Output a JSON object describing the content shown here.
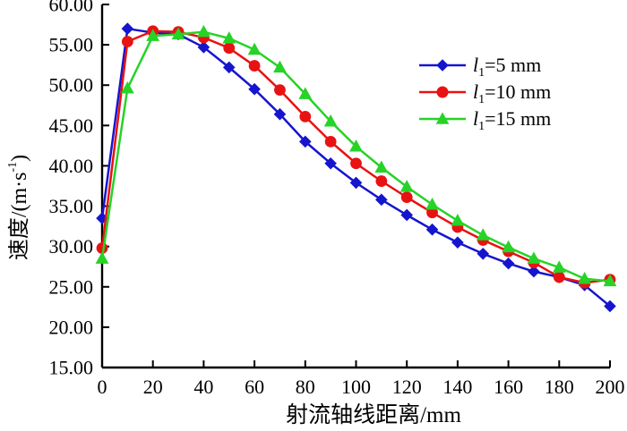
{
  "chart_data": {
    "type": "line",
    "xlabel": "射流轴线距离/mm",
    "ylabel_main": "速度/(m·s",
    "ylabel_sup": "-1",
    "ylabel_end": ")",
    "xlim": [
      0,
      200
    ],
    "ylim": [
      15,
      60
    ],
    "xticks": [
      "0",
      "20",
      "40",
      "60",
      "80",
      "100",
      "120",
      "140",
      "160",
      "180",
      "200"
    ],
    "yticks": [
      "60.00",
      "55.00",
      "50.00",
      "45.00",
      "40.00",
      "35.00",
      "30.00",
      "25.00",
      "20.00",
      "15.00"
    ],
    "grid": false,
    "legend_position": "inside-upper-right",
    "x": [
      0,
      10,
      20,
      30,
      40,
      50,
      60,
      70,
      80,
      90,
      100,
      110,
      120,
      130,
      140,
      150,
      160,
      170,
      180,
      190,
      200
    ],
    "series": [
      {
        "id": "l1-5mm",
        "name": "l1=5 mm",
        "label_var": "l",
        "label_sub": "1",
        "label_rest": "=5 mm",
        "color": "#1515cd",
        "marker": "diamond",
        "values": [
          33.5,
          57.0,
          56.5,
          56.3,
          54.7,
          52.2,
          49.5,
          46.4,
          43.0,
          40.3,
          37.9,
          35.8,
          33.9,
          32.1,
          30.5,
          29.1,
          27.9,
          26.9,
          26.2,
          25.2,
          22.6
        ]
      },
      {
        "id": "l1-10mm",
        "name": "l1=10 mm",
        "label_var": "l",
        "label_sub": "1",
        "label_rest": "=10 mm",
        "color": "#e81212",
        "marker": "circle",
        "values": [
          29.8,
          55.4,
          56.7,
          56.6,
          55.9,
          54.6,
          52.4,
          49.4,
          46.1,
          43.0,
          40.3,
          38.1,
          36.1,
          34.2,
          32.4,
          30.8,
          29.4,
          28.0,
          26.2,
          25.5,
          25.9
        ]
      },
      {
        "id": "l1-15mm",
        "name": "l1=15 mm",
        "label_var": "l",
        "label_sub": "1",
        "label_rest": "=15 mm",
        "color": "#26d326",
        "marker": "triangle",
        "values": [
          28.5,
          49.6,
          56.1,
          56.3,
          56.6,
          55.8,
          54.4,
          52.2,
          48.9,
          45.5,
          42.4,
          39.8,
          37.4,
          35.2,
          33.2,
          31.4,
          29.9,
          28.5,
          27.4,
          26.0,
          25.7
        ]
      }
    ]
  }
}
